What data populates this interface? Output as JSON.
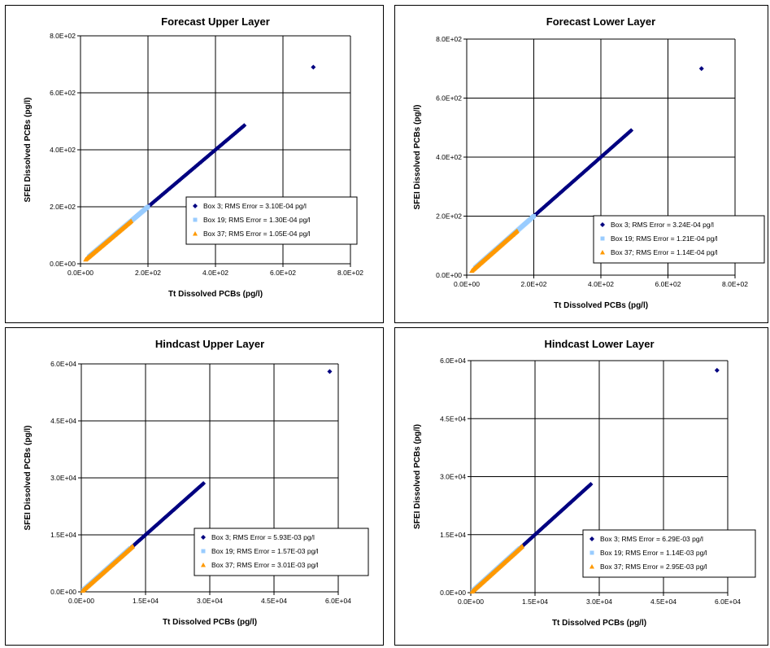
{
  "chart_data": [
    {
      "type": "scatter",
      "title": "Forecast Upper Layer",
      "xlabel": "Tt Dissolved PCBs (pg/l)",
      "ylabel": "SFEI Dissolved PCBs (pg/l)",
      "xlim": [
        0,
        800
      ],
      "ylim": [
        0,
        800
      ],
      "xticks": [
        "0.0E+00",
        "2.0E+02",
        "4.0E+02",
        "6.0E+02",
        "8.0E+02"
      ],
      "yticks": [
        "0.0E+00",
        "2.0E+02",
        "4.0E+02",
        "6.0E+02",
        "8.0E+02"
      ],
      "grid": true,
      "legend_position": "center-right",
      "series": [
        {
          "name": "Box 3; RMS Error =  3.10E-04 pg/l",
          "color": "#000080",
          "marker": "diamond",
          "range": [
            195,
            485
          ],
          "outlier": [
            690,
            690
          ]
        },
        {
          "name": "Box 19; RMS Error =  1.30E-04 pg/l",
          "color": "#99ccff",
          "marker": "square",
          "range": [
            25,
            200
          ]
        },
        {
          "name": "Box 37; RMS Error =  1.05E-04 pg/l",
          "color": "#ff9900",
          "marker": "triangle",
          "range": [
            15,
            150
          ]
        }
      ]
    },
    {
      "type": "scatter",
      "title": "Forecast Lower Layer",
      "xlabel": "Tt Dissolved PCBs (pg/l)",
      "ylabel": "SFEI Dissolved PCBs (pg/l)",
      "xlim": [
        0,
        800
      ],
      "ylim": [
        0,
        800
      ],
      "xticks": [
        "0.0E+00",
        "2.0E+02",
        "4.0E+02",
        "6.0E+02",
        "8.0E+02"
      ],
      "yticks": [
        "0.0E+00",
        "2.0E+02",
        "4.0E+02",
        "6.0E+02",
        "8.0E+02"
      ],
      "grid": true,
      "legend_position": "center-right",
      "series": [
        {
          "name": "Box 3; RMS Error =  3.24E-04 pg/l",
          "color": "#000080",
          "marker": "diamond",
          "range": [
            195,
            490
          ],
          "outlier": [
            700,
            700
          ]
        },
        {
          "name": "Box 19; RMS Error =  1.21E-04 pg/l",
          "color": "#99ccff",
          "marker": "square",
          "range": [
            25,
            200
          ]
        },
        {
          "name": "Box 37; RMS Error =  1.14E-04 pg/l",
          "color": "#ff9900",
          "marker": "triangle",
          "range": [
            15,
            150
          ]
        }
      ]
    },
    {
      "type": "scatter",
      "title": "Hindcast Upper Layer",
      "xlabel": "Tt Dissolved PCBs (pg/l)",
      "ylabel": "SFEI Dissolved PCBs (pg/l)",
      "xlim": [
        0,
        60000
      ],
      "ylim": [
        0,
        60000
      ],
      "xticks": [
        "0.0E+00",
        "1.5E+04",
        "3.0E+04",
        "4.5E+04",
        "6.0E+04"
      ],
      "yticks": [
        "0.0E+00",
        "1.5E+04",
        "3.0E+04",
        "4.5E+04",
        "6.0E+04"
      ],
      "grid": true,
      "legend_position": "bottom-right",
      "series": [
        {
          "name": "Box 3; RMS Error =  5.93E-03 pg/l",
          "color": "#000080",
          "marker": "diamond",
          "range": [
            10000,
            28500
          ],
          "outlier": [
            58000,
            58000
          ]
        },
        {
          "name": "Box 19; RMS Error =  1.57E-03 pg/l",
          "color": "#99ccff",
          "marker": "square",
          "range": [
            500,
            11500
          ]
        },
        {
          "name": "Box 37; RMS Error =  3.01E-03 pg/l",
          "color": "#ff9900",
          "marker": "triangle",
          "range": [
            300,
            12000
          ]
        }
      ]
    },
    {
      "type": "scatter",
      "title": "Hindcast Lower Layer",
      "xlabel": "Tt Dissolved PCBs (pg/l)",
      "ylabel": "SFEI Dissolved PCBs (pg/l)",
      "xlim": [
        0,
        60000
      ],
      "ylim": [
        0,
        60000
      ],
      "xticks": [
        "0.0E+00",
        "1.5E+04",
        "3.0E+04",
        "4.5E+04",
        "6.0E+04"
      ],
      "yticks": [
        "0.0E+00",
        "1.5E+04",
        "3.0E+04",
        "4.5E+04",
        "6.0E+04"
      ],
      "grid": true,
      "legend_position": "bottom-right",
      "series": [
        {
          "name": "Box 3; RMS Error =  6.29E-03 pg/l",
          "color": "#000080",
          "marker": "diamond",
          "range": [
            10000,
            28000
          ],
          "outlier": [
            57500,
            57500
          ]
        },
        {
          "name": "Box 19; RMS Error =  1.14E-03 pg/l",
          "color": "#99ccff",
          "marker": "square",
          "range": [
            500,
            11500
          ]
        },
        {
          "name": "Box 37; RMS Error =  2.95E-03 pg/l",
          "color": "#ff9900",
          "marker": "triangle",
          "range": [
            300,
            12000
          ]
        }
      ]
    }
  ]
}
